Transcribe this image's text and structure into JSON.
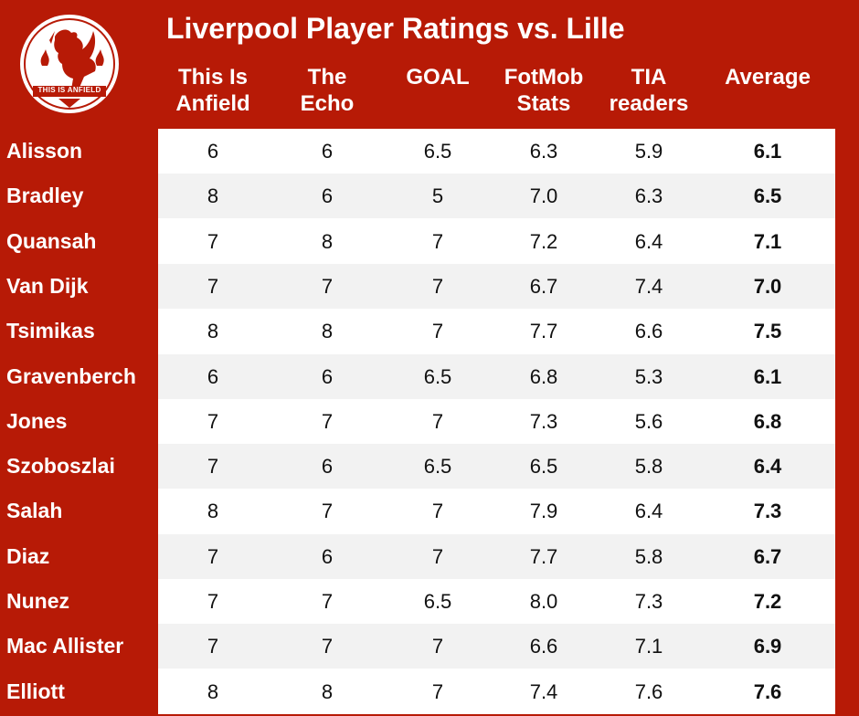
{
  "title": "Liverpool Player Ratings vs. Lille",
  "logo": {
    "icon": "liver-bird-icon",
    "text": "THIS IS ANFIELD"
  },
  "colors": {
    "background": "#b71a06",
    "stripe": "#f2f2f2",
    "row": "#ffffff"
  },
  "chart_data": {
    "type": "table",
    "title": "Liverpool Player Ratings vs. Lille",
    "columns": [
      [
        "This Is",
        "Anfield"
      ],
      [
        "The",
        "Echo"
      ],
      [
        "GOAL"
      ],
      [
        "FotMob",
        "Stats"
      ],
      [
        "TIA",
        "readers"
      ],
      [
        "Average"
      ]
    ],
    "rows": [
      {
        "player": "Alisson",
        "values": [
          "6",
          "6",
          "6.5",
          "6.3",
          "5.9",
          "6.1"
        ]
      },
      {
        "player": "Bradley",
        "values": [
          "8",
          "6",
          "5",
          "7.0",
          "6.3",
          "6.5"
        ]
      },
      {
        "player": "Quansah",
        "values": [
          "7",
          "8",
          "7",
          "7.2",
          "6.4",
          "7.1"
        ]
      },
      {
        "player": "Van Dijk",
        "values": [
          "7",
          "7",
          "7",
          "6.7",
          "7.4",
          "7.0"
        ]
      },
      {
        "player": "Tsimikas",
        "values": [
          "8",
          "8",
          "7",
          "7.7",
          "6.6",
          "7.5"
        ]
      },
      {
        "player": "Gravenberch",
        "values": [
          "6",
          "6",
          "6.5",
          "6.8",
          "5.3",
          "6.1"
        ]
      },
      {
        "player": "Jones",
        "values": [
          "7",
          "7",
          "7",
          "7.3",
          "5.6",
          "6.8"
        ]
      },
      {
        "player": "Szoboszlai",
        "values": [
          "7",
          "6",
          "6.5",
          "6.5",
          "5.8",
          "6.4"
        ]
      },
      {
        "player": "Salah",
        "values": [
          "8",
          "7",
          "7",
          "7.9",
          "6.4",
          "7.3"
        ]
      },
      {
        "player": "Diaz",
        "values": [
          "7",
          "6",
          "7",
          "7.7",
          "5.8",
          "6.7"
        ]
      },
      {
        "player": "Nunez",
        "values": [
          "7",
          "7",
          "6.5",
          "8.0",
          "7.3",
          "7.2"
        ]
      },
      {
        "player": "Mac Allister",
        "values": [
          "7",
          "7",
          "7",
          "6.6",
          "7.1",
          "6.9"
        ]
      },
      {
        "player": "Elliott",
        "values": [
          "8",
          "8",
          "7",
          "7.4",
          "7.6",
          "7.6"
        ]
      }
    ]
  }
}
